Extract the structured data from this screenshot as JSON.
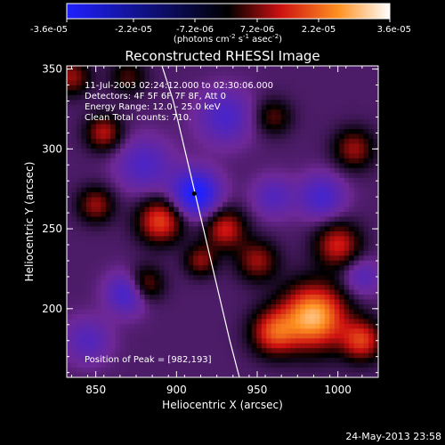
{
  "chart_data": {
    "type": "heatmap",
    "title": "Reconstructed RHESSI Image",
    "xlabel": "Heliocentric X (arcsec)",
    "ylabel": "Heliocentric Y (arcsec)",
    "xlim": [
      832,
      1025
    ],
    "ylim": [
      157,
      352
    ],
    "xticks": [
      850,
      900,
      950,
      1000
    ],
    "yticks": [
      200,
      250,
      300,
      350
    ],
    "colorbar": {
      "ticks": [
        "-3.6e-05",
        "-2.2e-05",
        "-7.2e-06",
        "7.2e-06",
        "2.2e-05",
        "3.6e-05"
      ],
      "range": [
        -3.6e-05,
        3.6e-05
      ],
      "unit_text": "(photons cm",
      "unit_sup1": "-2",
      "unit_mid1": " s",
      "unit_sup2": "-1",
      "unit_mid2": " asec",
      "unit_sup3": "-2",
      "unit_end": ")",
      "colors": [
        "#2020ff",
        "#000000",
        "#cc1010",
        "#ff9020",
        "#ffffff"
      ]
    },
    "annotations": [
      "11-Jul-2003 02:24:12.000 to 02:30:06.000",
      "Detectors: 4F 5F 6F 7F 8F, Att 0",
      "Energy Range: 12.0 - 25.0 keV",
      "Clean    Total counts: 710."
    ],
    "peak_label": "Position of Peak = [982,193]",
    "marker": {
      "x": 911,
      "y": 272
    },
    "limb": [
      [
        891,
        352
      ],
      [
        898,
        330
      ],
      [
        905,
        300
      ],
      [
        912,
        270
      ],
      [
        919,
        240
      ],
      [
        926,
        210
      ],
      [
        933,
        180
      ],
      [
        939,
        157
      ]
    ],
    "sources": [
      {
        "x": 890,
        "y": 255,
        "amp": 2.4e-05,
        "w": 10
      },
      {
        "x": 930,
        "y": 250,
        "amp": 2e-05,
        "w": 9
      },
      {
        "x": 985,
        "y": 195,
        "amp": 3.6e-05,
        "w": 14
      },
      {
        "x": 960,
        "y": 185,
        "amp": 2.2e-05,
        "w": 10
      },
      {
        "x": 1000,
        "y": 240,
        "amp": 2e-05,
        "w": 10
      },
      {
        "x": 1010,
        "y": 300,
        "amp": 1.6e-05,
        "w": 9
      },
      {
        "x": 950,
        "y": 230,
        "amp": 1.6e-05,
        "w": 9
      },
      {
        "x": 855,
        "y": 310,
        "amp": 1.8e-05,
        "w": 8
      },
      {
        "x": 850,
        "y": 265,
        "amp": 1.6e-05,
        "w": 8
      },
      {
        "x": 880,
        "y": 215,
        "amp": 1.8e-05,
        "w": 8
      },
      {
        "x": 835,
        "y": 345,
        "amp": 1.6e-05,
        "w": 8
      },
      {
        "x": 960,
        "y": 320,
        "amp": 1.2e-05,
        "w": 8
      },
      {
        "x": 1015,
        "y": 180,
        "amp": 2.2e-05,
        "w": 9
      },
      {
        "x": 915,
        "y": 230,
        "amp": 1.5e-05,
        "w": 7
      },
      {
        "x": 870,
        "y": 345,
        "amp": 1.1e-05,
        "w": 8
      },
      {
        "x": 912,
        "y": 272,
        "amp": -3e-05,
        "w": 10
      },
      {
        "x": 870,
        "y": 210,
        "amp": -2e-05,
        "w": 9
      },
      {
        "x": 990,
        "y": 270,
        "amp": -1.6e-05,
        "w": 10
      },
      {
        "x": 930,
        "y": 320,
        "amp": -1.5e-05,
        "w": 12
      },
      {
        "x": 880,
        "y": 290,
        "amp": -1.4e-05,
        "w": 12
      },
      {
        "x": 960,
        "y": 270,
        "amp": -1.2e-05,
        "w": 9
      },
      {
        "x": 845,
        "y": 180,
        "amp": -1.2e-05,
        "w": 10
      },
      {
        "x": 1015,
        "y": 220,
        "amp": -1.2e-05,
        "w": 8
      }
    ]
  },
  "footer": {
    "date": "24-May-2013 23:58"
  }
}
